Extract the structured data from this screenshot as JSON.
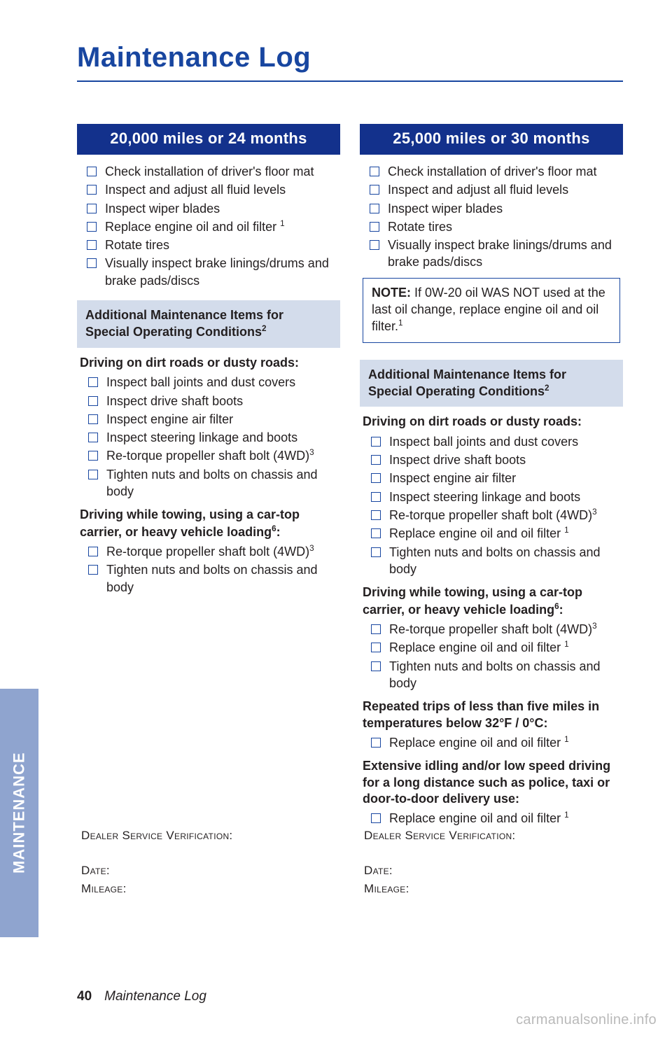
{
  "page": {
    "title": "Maintenance Log",
    "number": "40",
    "footer_title": "Maintenance Log",
    "side_tab": "MAINTENANCE",
    "watermark": "carmanualsonline.info"
  },
  "colors": {
    "brand_blue": "#1846a0",
    "header_blue": "#13318c",
    "tab_blue": "#8fa4cf",
    "sub_header_bg": "#d3dceb",
    "text": "#231f20",
    "bg": "#ffffff"
  },
  "verify": {
    "dealer": "Dealer Service Verification:",
    "date": "Date:",
    "mileage": "Mileage:"
  },
  "left": {
    "header": "20,000 miles or 24 months",
    "main_items": [
      {
        "t": "Check installation of driver's floor mat"
      },
      {
        "t": "Inspect and adjust all fluid levels"
      },
      {
        "t": "Inspect wiper blades"
      },
      {
        "t": "Replace engine oil and oil filter ",
        "sup": "1"
      },
      {
        "t": "Rotate tires"
      },
      {
        "t": "Visually inspect brake linings/drums and brake pads/discs"
      }
    ],
    "sub_header_l1": "Additional Maintenance Items for",
    "sub_header_l2": "Special Operating Conditions",
    "sub_header_sup": "2",
    "conditions": [
      {
        "title": "Driving on dirt roads or dusty roads:",
        "items": [
          {
            "t": "Inspect ball joints and dust covers"
          },
          {
            "t": "Inspect drive shaft boots"
          },
          {
            "t": "Inspect engine air filter"
          },
          {
            "t": "Inspect steering linkage and boots"
          },
          {
            "t": "Re-torque propeller shaft bolt (4WD)",
            "sup": "3"
          },
          {
            "t": "Tighten nuts and bolts on chassis and body"
          }
        ]
      },
      {
        "title_l1": "Driving while towing, using a car-top",
        "title_l2": "carrier, or heavy vehicle loading",
        "title_sup": "6",
        "title_suffix": ":",
        "items": [
          {
            "t": "Re-torque propeller shaft bolt (4WD)",
            "sup": "3"
          },
          {
            "t": "Tighten nuts and bolts on chassis and body"
          }
        ]
      }
    ]
  },
  "right": {
    "header": "25,000 miles or 30 months",
    "main_items": [
      {
        "t": "Check installation of driver's floor mat"
      },
      {
        "t": "Inspect and adjust all fluid levels"
      },
      {
        "t": "Inspect wiper blades"
      },
      {
        "t": "Rotate tires"
      },
      {
        "t": "Visually inspect brake linings/drums and brake pads/discs"
      }
    ],
    "note_label": "NOTE:",
    "note_body": " If 0W-20 oil WAS NOT used at the last oil change, replace engine oil and oil filter.",
    "note_sup": "1",
    "sub_header_l1": "Additional Maintenance Items for",
    "sub_header_l2": "Special Operating Conditions",
    "sub_header_sup": "2",
    "conditions": [
      {
        "title": "Driving on dirt roads or dusty roads:",
        "items": [
          {
            "t": "Inspect ball joints and dust covers"
          },
          {
            "t": "Inspect drive shaft boots"
          },
          {
            "t": "Inspect engine air filter"
          },
          {
            "t": "Inspect steering linkage and boots"
          },
          {
            "t": "Re-torque propeller shaft bolt (4WD)",
            "sup": "3"
          },
          {
            "t": "Replace engine oil and oil filter ",
            "sup": "1"
          },
          {
            "t": "Tighten nuts and bolts on chassis and body"
          }
        ]
      },
      {
        "title_l1": "Driving while towing, using a car-top",
        "title_l2": "carrier, or heavy vehicle loading",
        "title_sup": "6",
        "title_suffix": ":",
        "items": [
          {
            "t": "Re-torque propeller shaft bolt (4WD)",
            "sup": "3"
          },
          {
            "t": "Replace engine oil and oil filter ",
            "sup": "1"
          },
          {
            "t": "Tighten nuts and bolts on chassis and body"
          }
        ]
      },
      {
        "title": "Repeated trips of less than five miles in temperatures below 32°F / 0°C:",
        "items": [
          {
            "t": "Replace engine oil and oil filter ",
            "sup": "1"
          }
        ]
      },
      {
        "title": "Extensive idling and/or low speed driving for a long distance such as police, taxi or door-to-door delivery use:",
        "items": [
          {
            "t": "Replace engine oil and oil filter ",
            "sup": "1"
          }
        ]
      }
    ]
  }
}
